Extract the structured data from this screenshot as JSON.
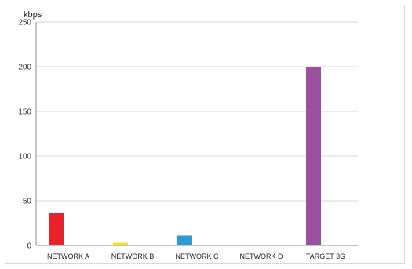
{
  "chart_data": {
    "type": "bar",
    "ylabel": "kbps",
    "categories": [
      "NETWORK A",
      "NETWORK B",
      "NETWORK C",
      "NETWORK D",
      "TARGET 3G"
    ],
    "values": [
      36,
      3,
      11,
      0,
      200
    ],
    "colors": [
      "#e8212a",
      "#f5e60f",
      "#2f9bd6",
      "#999999",
      "#9b4f9f"
    ],
    "ylim": [
      0,
      250
    ],
    "yticks": [
      0,
      50,
      100,
      150,
      200,
      250
    ],
    "grid": true,
    "legend": "none"
  }
}
